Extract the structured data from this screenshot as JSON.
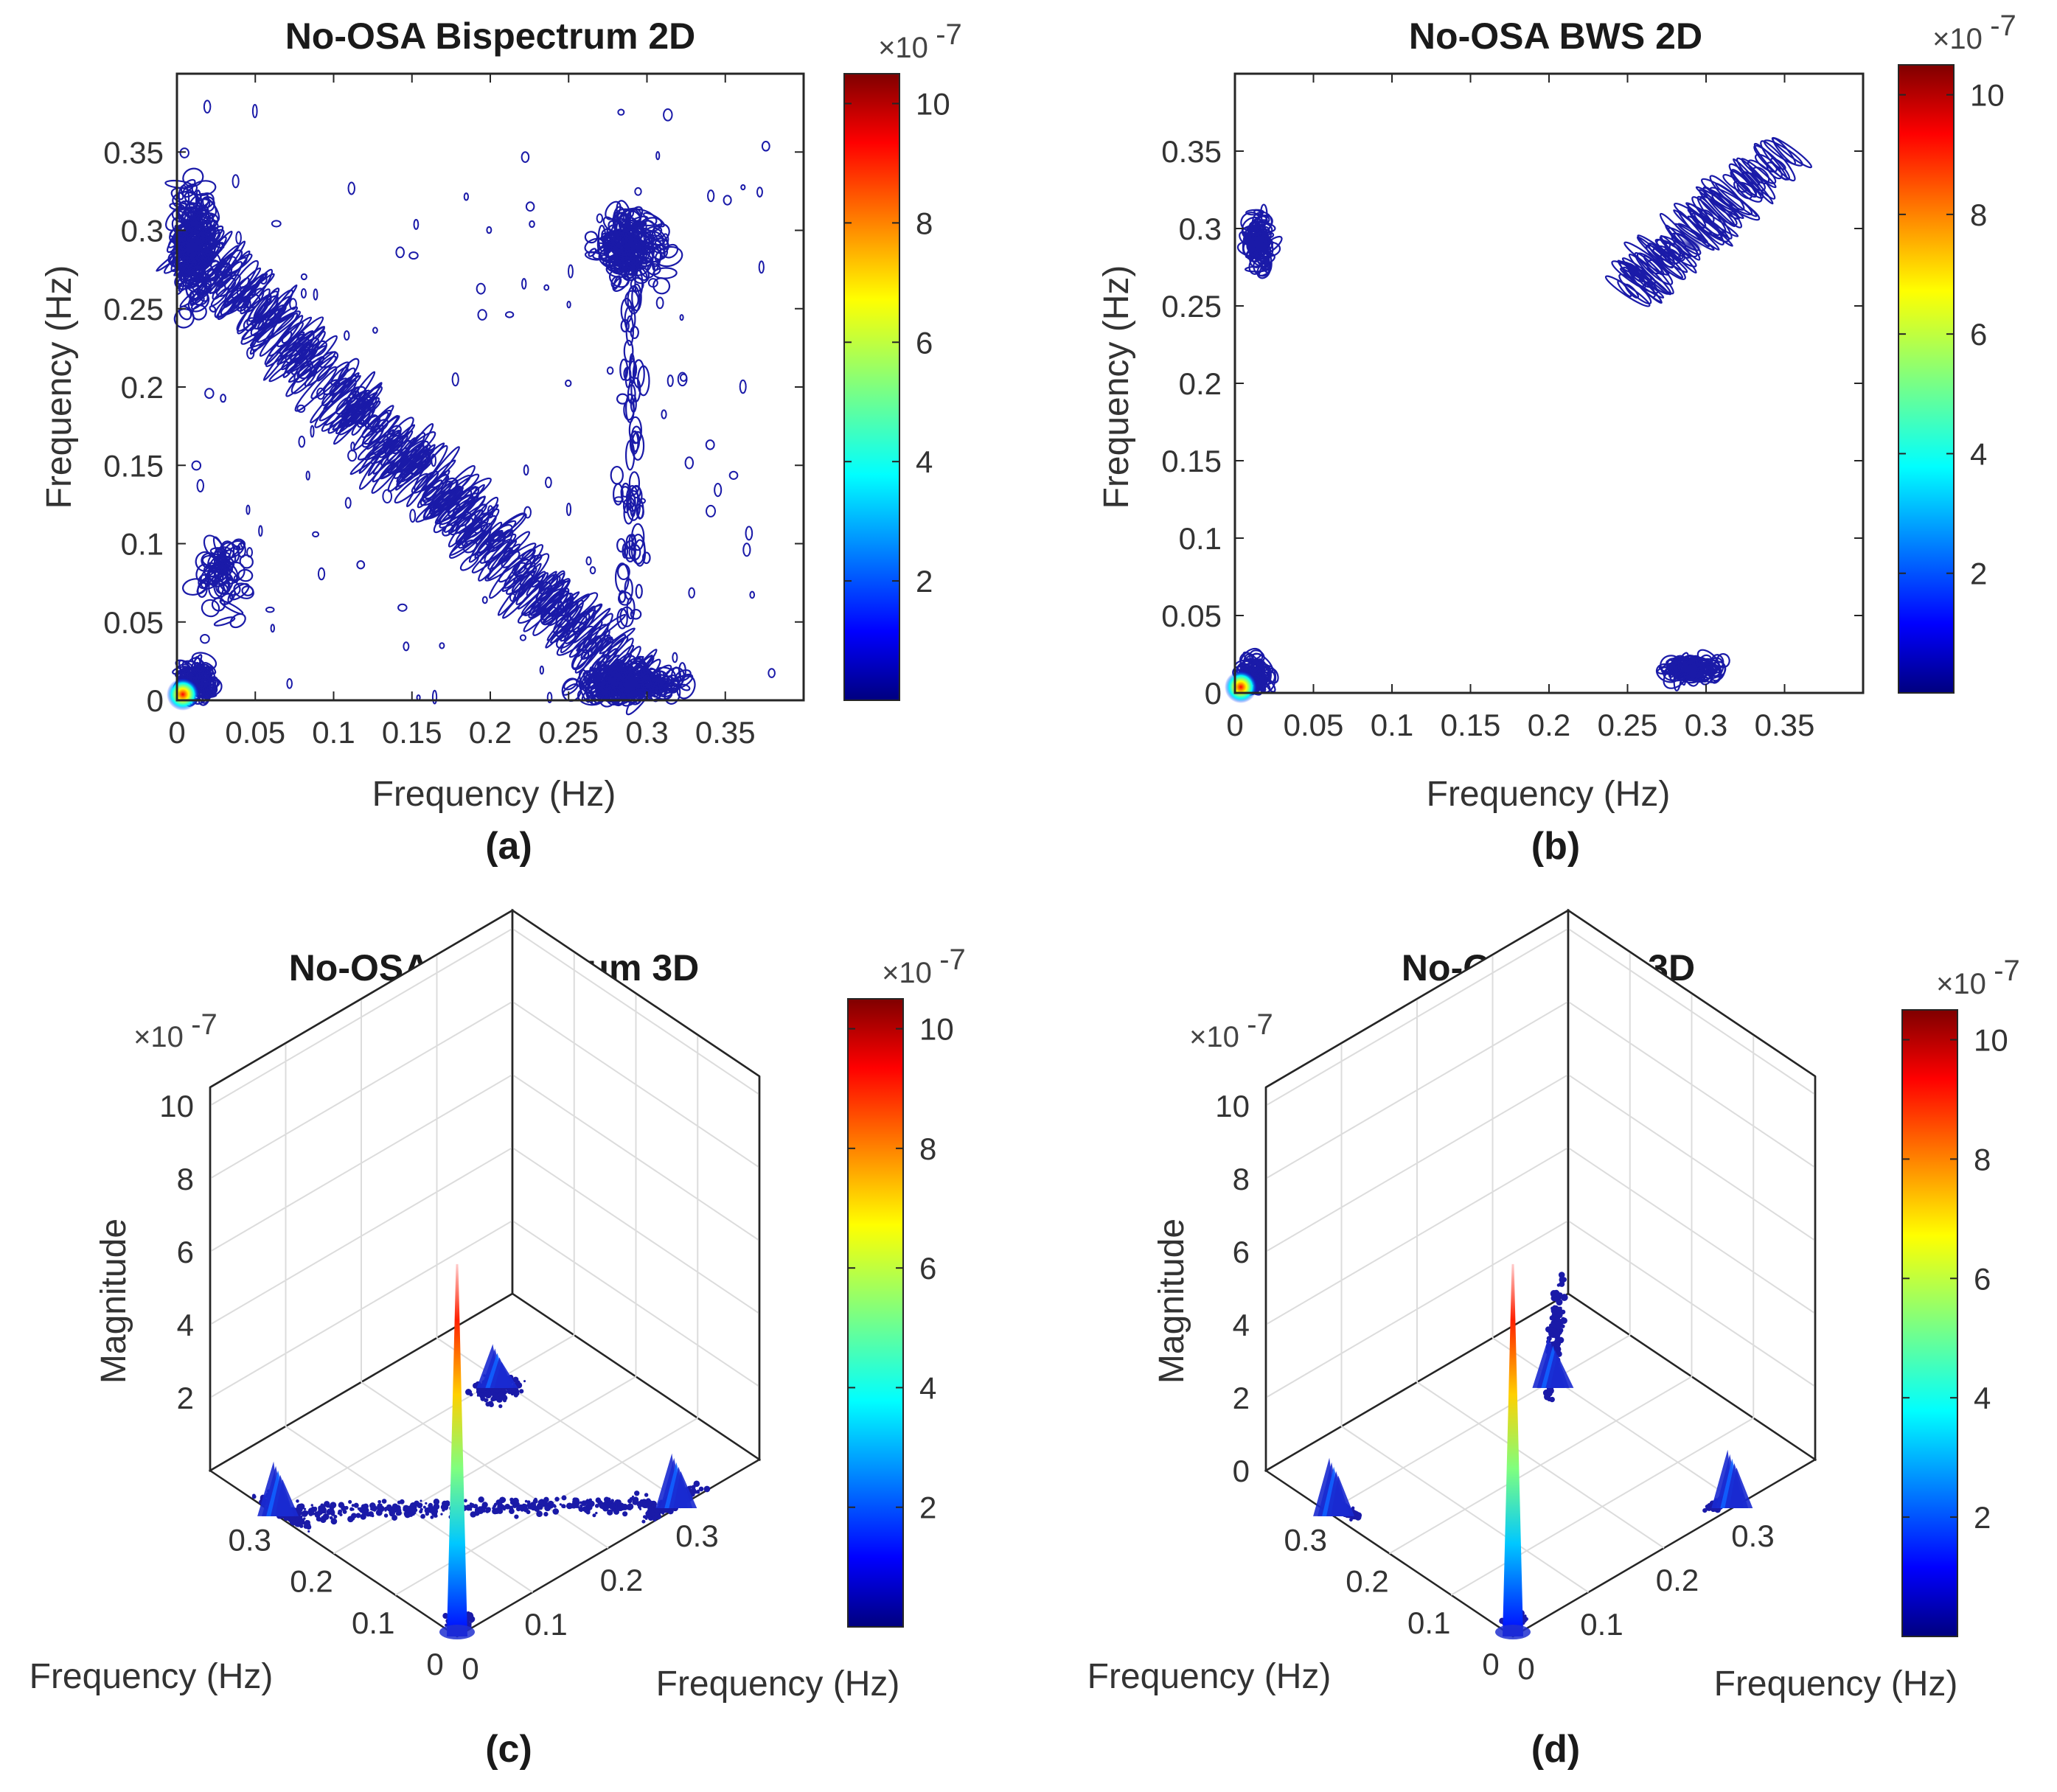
{
  "chart_data": [
    {
      "type": "contour",
      "panel": "(a)",
      "title": "No-OSA Bispectrum 2D",
      "xlabel": "Frequency (Hz)",
      "ylabel": "Frequency (Hz)",
      "xlim": [
        0,
        0.4
      ],
      "ylim": [
        0,
        0.4
      ],
      "xticks": [
        "0",
        "0.05",
        "0.1",
        "0.15",
        "0.2",
        "0.25",
        "0.3",
        "0.35"
      ],
      "yticks": [
        "0",
        "0.05",
        "0.1",
        "0.15",
        "0.2",
        "0.25",
        "0.3",
        "0.35"
      ],
      "colorbar": {
        "ticks": [
          "2",
          "4",
          "6",
          "8",
          "10"
        ],
        "range": [
          0,
          10.5
        ],
        "multiplier_base": "×10",
        "multiplier_exp": "-7"
      },
      "features": [
        {
          "name": "peak at origin",
          "x": 0.0,
          "y": 0.0,
          "magnitude": 10.5
        },
        {
          "name": "anti-diagonal ridge",
          "from": [
            0.0,
            0.3
          ],
          "to": [
            0.3,
            0.0
          ]
        },
        {
          "name": "diagonal cluster",
          "x": 0.29,
          "y": 0.29
        },
        {
          "name": "x-axis cluster",
          "x": 0.29,
          "y": 0.01
        },
        {
          "name": "y-axis cluster",
          "x": 0.01,
          "y": 0.29
        },
        {
          "name": "vertical band",
          "x": 0.29,
          "y_range": [
            0.05,
            0.3
          ]
        }
      ]
    },
    {
      "type": "contour",
      "panel": "(b)",
      "title": "No-OSA BWS 2D",
      "xlabel": "Frequency (Hz)",
      "ylabel": "Frequency (Hz)",
      "xlim": [
        0,
        0.4
      ],
      "ylim": [
        0,
        0.4
      ],
      "xticks": [
        "0",
        "0.05",
        "0.1",
        "0.15",
        "0.2",
        "0.25",
        "0.3",
        "0.35"
      ],
      "yticks": [
        "0",
        "0.05",
        "0.1",
        "0.15",
        "0.2",
        "0.25",
        "0.3",
        "0.35"
      ],
      "colorbar": {
        "ticks": [
          "2",
          "4",
          "6",
          "8",
          "10"
        ],
        "range": [
          0,
          10.5
        ],
        "multiplier_base": "×10",
        "multiplier_exp": "-7"
      },
      "features": [
        {
          "name": "peak at origin",
          "x": 0.0,
          "y": 0.0,
          "magnitude": 10.5
        },
        {
          "name": "y-axis cluster",
          "x": 0.015,
          "y": 0.29
        },
        {
          "name": "diagonal cluster",
          "from": [
            0.25,
            0.26
          ],
          "to": [
            0.35,
            0.35
          ]
        },
        {
          "name": "x-axis cluster",
          "x": 0.29,
          "y": 0.015
        }
      ]
    },
    {
      "type": "surface3d",
      "panel": "(c)",
      "title": "No-OSA Bispectrum 3D",
      "xlabel": "Frequency (Hz)",
      "ylabel": "Frequency (Hz)",
      "zlabel": "Magnitude",
      "xticks": [
        "0",
        "0.1",
        "0.2",
        "0.3"
      ],
      "yticks": [
        "0",
        "0.1",
        "0.2",
        "0.3"
      ],
      "zticks": [
        "2",
        "4",
        "6",
        "8",
        "10"
      ],
      "zlim": [
        0,
        10.5
      ],
      "z_multiplier_base": "×10",
      "z_multiplier_exp": "-7",
      "colorbar": {
        "ticks": [
          "2",
          "4",
          "6",
          "8",
          "10"
        ],
        "range": [
          0,
          10.5
        ],
        "multiplier_base": "×10",
        "multiplier_exp": "-7"
      },
      "peaks": [
        {
          "x": 0.0,
          "y": 0.0,
          "z": 10.2
        },
        {
          "x": 0.0,
          "y": 0.29,
          "z": 1.5
        },
        {
          "x": 0.29,
          "y": 0.0,
          "z": 1.5
        },
        {
          "x": 0.29,
          "y": 0.29,
          "z": 1.2
        }
      ]
    },
    {
      "type": "surface3d",
      "panel": "(d)",
      "title": "No-OSA BWS 3D",
      "xlabel": "Frequency (Hz)",
      "ylabel": "Frequency (Hz)",
      "zlabel": "Magnitude",
      "xticks": [
        "0",
        "0.1",
        "0.2",
        "0.3"
      ],
      "yticks": [
        "0",
        "0.1",
        "0.2",
        "0.3"
      ],
      "zticks": [
        "0",
        "2",
        "4",
        "6",
        "8",
        "10"
      ],
      "zlim": [
        0,
        10.5
      ],
      "z_multiplier_base": "×10",
      "z_multiplier_exp": "-7",
      "colorbar": {
        "ticks": [
          "2",
          "4",
          "6",
          "8",
          "10"
        ],
        "range": [
          0,
          10.5
        ],
        "multiplier_base": "×10",
        "multiplier_exp": "-7"
      },
      "peaks": [
        {
          "x": 0.0,
          "y": 0.0,
          "z": 10.2
        },
        {
          "x": 0.0,
          "y": 0.29,
          "z": 1.6
        },
        {
          "x": 0.29,
          "y": 0.0,
          "z": 1.6
        },
        {
          "x": 0.29,
          "y": 0.29,
          "z": 1.4
        }
      ]
    }
  ],
  "colors": {
    "contour": "#1a1aa8",
    "axis": "#262626",
    "grid": "#dcdcdc",
    "jet": [
      "#00007f",
      "#0000ff",
      "#007fff",
      "#00ffff",
      "#7fff7f",
      "#ffff00",
      "#ff7f00",
      "#ff0000",
      "#7f0000"
    ]
  }
}
